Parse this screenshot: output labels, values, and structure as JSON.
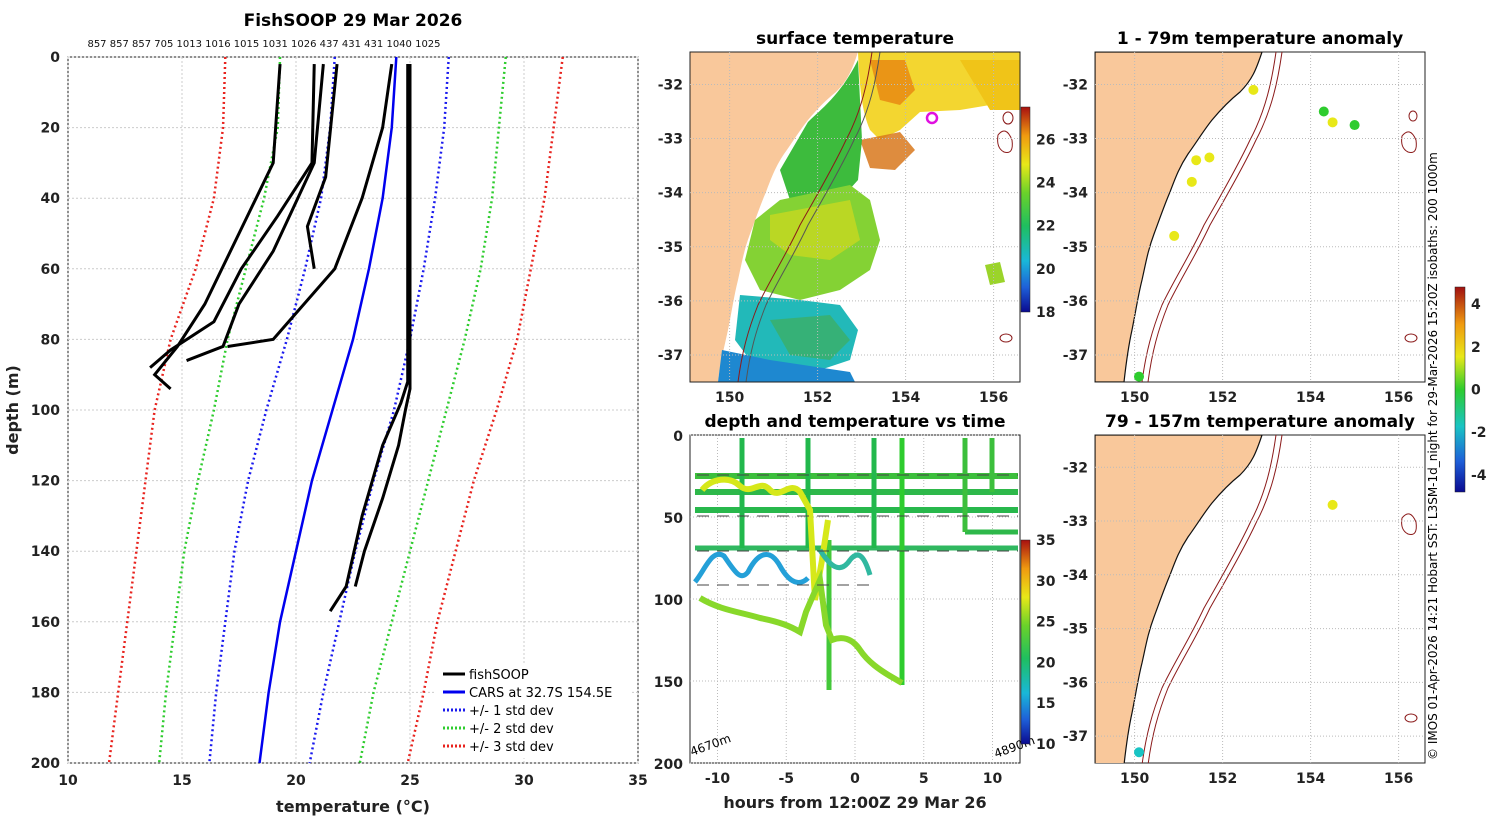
{
  "colors": {
    "land": "#f9c89b",
    "profile": "#000000",
    "cars": "#0000ee",
    "std1": "#1a1aee",
    "std2": "#2ecc2e",
    "std3": "#e8231e",
    "grid": "#cccccc"
  },
  "chart_data": [
    {
      "type": "line",
      "title": "FishSOOP 29 Mar 2026",
      "xlabel": "temperature (°C)",
      "ylabel": "depth (m)",
      "xlim": [
        10,
        35
      ],
      "ylim": [
        200,
        0
      ],
      "xticks": [
        "10",
        "15",
        "20",
        "25",
        "30",
        "35"
      ],
      "yticks": [
        "0",
        "20",
        "40",
        "60",
        "80",
        "100",
        "120",
        "140",
        "160",
        "180",
        "200"
      ],
      "top_ids": "857 857 857 705 1013 1016 1015 1031 1026 437 431 431 1040 1025",
      "legend": [
        {
          "label": "fishSOOP",
          "style": "solid",
          "color": "profile"
        },
        {
          "label": "CARS at 32.7S 154.5E",
          "style": "solid",
          "color": "cars"
        },
        {
          "label": "+/- 1 std dev",
          "style": "dotted",
          "color": "std1"
        },
        {
          "label": "+/- 2 std dev",
          "style": "dotted",
          "color": "std2"
        },
        {
          "label": "+/- 3 std dev",
          "style": "dotted",
          "color": "std3"
        }
      ],
      "series": [
        {
          "name": "CARS",
          "depth": [
            0,
            20,
            40,
            60,
            80,
            100,
            120,
            140,
            160,
            180,
            200
          ],
          "temp": [
            24.4,
            24.2,
            23.8,
            23.2,
            22.5,
            21.6,
            20.7,
            20.0,
            19.3,
            18.8,
            18.4
          ]
        },
        {
          "name": "CARS -1sd",
          "depth": [
            0,
            20,
            40,
            60,
            80,
            100,
            120,
            140,
            160,
            180,
            200
          ],
          "temp": [
            21.7,
            21.5,
            21.1,
            20.4,
            19.6,
            18.7,
            17.9,
            17.3,
            16.9,
            16.5,
            16.2
          ]
        },
        {
          "name": "CARS +1sd",
          "depth": [
            0,
            20,
            40,
            60,
            80,
            100,
            120,
            140,
            160,
            180,
            200
          ],
          "temp": [
            26.7,
            26.5,
            26.1,
            25.6,
            25.0,
            24.3,
            23.4,
            22.6,
            21.9,
            21.2,
            20.6
          ]
        },
        {
          "name": "CARS -2sd",
          "depth": [
            0,
            20,
            40,
            60,
            80,
            100,
            120,
            140,
            160,
            180,
            200
          ],
          "temp": [
            19.3,
            19.2,
            18.6,
            17.8,
            17.0,
            16.4,
            15.7,
            15.1,
            14.7,
            14.3,
            14.0
          ]
        },
        {
          "name": "CARS +2sd",
          "depth": [
            0,
            20,
            40,
            60,
            80,
            100,
            120,
            140,
            160,
            180,
            200
          ],
          "temp": [
            29.2,
            28.9,
            28.6,
            28.1,
            27.4,
            26.6,
            25.8,
            25.0,
            24.2,
            23.4,
            22.8
          ]
        },
        {
          "name": "CARS -3sd",
          "depth": [
            0,
            20,
            40,
            60,
            80,
            100,
            120,
            140,
            160,
            180,
            200
          ],
          "temp": [
            16.9,
            16.8,
            16.4,
            15.6,
            14.5,
            13.8,
            13.4,
            13.0,
            12.6,
            12.2,
            11.8
          ]
        },
        {
          "name": "CARS +3sd",
          "depth": [
            0,
            20,
            40,
            60,
            80,
            100,
            120,
            140,
            160,
            180,
            200
          ],
          "temp": [
            31.7,
            31.3,
            30.9,
            30.3,
            29.7,
            28.8,
            27.8,
            27.0,
            26.2,
            25.6,
            24.9
          ]
        }
      ],
      "profiles": [
        {
          "depth": [
            2,
            30,
            50,
            70,
            82,
            90,
            94
          ],
          "temp": [
            19.3,
            19.0,
            17.5,
            16.0,
            14.8,
            13.8,
            14.5
          ]
        },
        {
          "depth": [
            2,
            30,
            45,
            60,
            75,
            83,
            88
          ],
          "temp": [
            20.8,
            20.7,
            19.2,
            17.6,
            16.4,
            14.5,
            13.6
          ]
        },
        {
          "depth": [
            2,
            34,
            48,
            60
          ],
          "temp": [
            21.8,
            21.3,
            20.5,
            20.8
          ]
        },
        {
          "depth": [
            2,
            30,
            55,
            70,
            82,
            86
          ],
          "temp": [
            21.2,
            20.8,
            19.0,
            17.5,
            16.8,
            15.2
          ]
        },
        {
          "depth": [
            2,
            20,
            40,
            60,
            80,
            82
          ],
          "temp": [
            24.2,
            23.8,
            22.9,
            21.7,
            19.0,
            17.0
          ]
        },
        {
          "depth": [
            2,
            40,
            70,
            92,
            98,
            110,
            130,
            150,
            157
          ],
          "temp": [
            24.9,
            24.9,
            24.9,
            24.9,
            24.6,
            23.8,
            22.9,
            22.2,
            21.5
          ]
        },
        {
          "depth": [
            2,
            50,
            94,
            100,
            110,
            125,
            140,
            150
          ],
          "temp": [
            25.0,
            25.0,
            25.0,
            24.8,
            24.5,
            23.8,
            23.0,
            22.6
          ]
        }
      ]
    },
    {
      "type": "heatmap",
      "title": "surface temperature",
      "xticks": [
        "150",
        "152",
        "154",
        "156"
      ],
      "yticks": [
        "-32",
        "-33",
        "-34",
        "-35",
        "-36",
        "-37"
      ],
      "xlim": [
        149.1,
        156.6
      ],
      "ylim": [
        -37.5,
        -31.4
      ],
      "colorbar": {
        "ticks": [
          "26",
          "24",
          "22",
          "20",
          "18"
        ],
        "range": [
          18,
          27.5
        ]
      },
      "marker": {
        "lon": 154.5,
        "lat": -32.7
      }
    },
    {
      "type": "scatter",
      "title": "depth and temperature vs time",
      "xlabel": "hours from 12:00Z 29 Mar 26",
      "xticks": [
        "-10",
        "-5",
        "0",
        "5",
        "10"
      ],
      "yticks": [
        "0",
        "50",
        "100",
        "150",
        "200"
      ],
      "xlim": [
        -12,
        12
      ],
      "ylim": [
        200,
        0
      ],
      "corner_left": "4670m",
      "corner_right": "4890m",
      "colorbar": {
        "ticks": [
          "35",
          "30",
          "25",
          "20",
          "15",
          "10"
        ],
        "range": [
          10,
          35
        ]
      }
    },
    {
      "type": "scatter",
      "title": "1 - 79m temperature anomaly",
      "xticks": [
        "150",
        "152",
        "154",
        "156"
      ],
      "yticks": [
        "-32",
        "-33",
        "-34",
        "-35",
        "-36",
        "-37"
      ],
      "points": [
        {
          "lon": 152.7,
          "lat": -32.1,
          "value": 2.2
        },
        {
          "lon": 154.3,
          "lat": -32.5,
          "value": 0.3
        },
        {
          "lon": 154.5,
          "lat": -32.7,
          "value": 1.6
        },
        {
          "lon": 155.0,
          "lat": -32.75,
          "value": 0.1
        },
        {
          "lon": 151.7,
          "lat": -33.35,
          "value": 2.8
        },
        {
          "lon": 151.4,
          "lat": -33.4,
          "value": 3.0
        },
        {
          "lon": 151.3,
          "lat": -33.8,
          "value": 3.0
        },
        {
          "lon": 150.9,
          "lat": -34.8,
          "value": 2.8
        },
        {
          "lon": 150.1,
          "lat": -37.4,
          "value": 1.0
        }
      ]
    },
    {
      "type": "scatter",
      "title": "79 - 157m temperature anomaly",
      "xticks": [
        "150",
        "152",
        "154",
        "156"
      ],
      "yticks": [
        "-32",
        "-33",
        "-34",
        "-35",
        "-36",
        "-37"
      ],
      "points": [
        {
          "lon": 154.5,
          "lat": -32.7,
          "value": 2.6
        },
        {
          "lon": 150.1,
          "lat": -37.3,
          "value": -0.8
        }
      ],
      "colorbar": {
        "ticks": [
          "4",
          "2",
          "0",
          "-2",
          "-4"
        ],
        "range": [
          -4.8,
          4.8
        ]
      }
    }
  ],
  "side_caption": "© IMOS 01-Apr-2026 14:21 Hobart SST: L3SM-1d_night for 29-Mar-2026 15:20Z isobaths: 200  1000m"
}
